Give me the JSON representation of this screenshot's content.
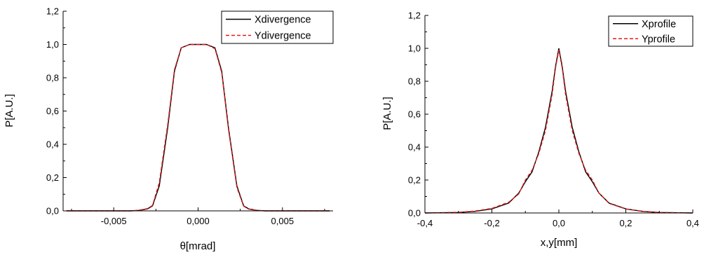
{
  "chart_data": [
    {
      "type": "line",
      "xlabel": "θ[mrad]",
      "ylabel": "P[A.U.]",
      "xlim": [
        -0.008,
        0.008
      ],
      "ylim": [
        0,
        1.2
      ],
      "xticks": [
        -0.005,
        0.0,
        0.005
      ],
      "xtick_labels": [
        "-0,005",
        "0,000",
        "0,005"
      ],
      "yticks": [
        0,
        0.2,
        0.4,
        0.6,
        0.8,
        1.0,
        1.2
      ],
      "ytick_labels": [
        "0,0",
        "0,2",
        "0,4",
        "0,6",
        "0,8",
        "1,0",
        "1,2"
      ],
      "grid": false,
      "legend": "top-right",
      "series": [
        {
          "name": "Xdivergence",
          "color": "#000000",
          "dash": "solid",
          "x": [
            -0.0078,
            -0.006,
            -0.004,
            -0.0035,
            -0.003,
            -0.0027,
            -0.0023,
            -0.0018,
            -0.0014,
            -0.001,
            -0.0005,
            -0.0001,
            0.0001,
            0.0005,
            0.001,
            0.0014,
            0.0018,
            0.0023,
            0.0027,
            0.003,
            0.0035,
            0.004,
            0.006,
            0.0078
          ],
          "y": [
            0,
            0,
            0,
            0.003,
            0.012,
            0.03,
            0.15,
            0.5,
            0.84,
            0.98,
            1.0,
            1.0,
            1.0,
            1.0,
            0.98,
            0.84,
            0.5,
            0.15,
            0.03,
            0.012,
            0.003,
            0,
            0,
            0
          ]
        },
        {
          "name": "Ydivergence",
          "color": "#e8191c",
          "dash": "dashed",
          "x": [
            -0.0078,
            -0.006,
            -0.004,
            -0.0035,
            -0.003,
            -0.0027,
            -0.0023,
            -0.0018,
            -0.0014,
            -0.001,
            -0.0005,
            -0.0001,
            0.0001,
            0.0005,
            0.001,
            0.0014,
            0.0018,
            0.0023,
            0.0027,
            0.003,
            0.0035,
            0.004,
            0.006,
            0.0078
          ],
          "y": [
            0,
            0,
            0,
            0.004,
            0.014,
            0.033,
            0.17,
            0.52,
            0.85,
            0.98,
            1.0,
            1.0,
            1.0,
            1.0,
            0.975,
            0.83,
            0.49,
            0.14,
            0.028,
            0.01,
            0.003,
            0,
            0,
            0
          ]
        }
      ]
    },
    {
      "type": "line",
      "xlabel": "x,y[mm]",
      "ylabel": "P[A.U.]",
      "xlim": [
        -0.4,
        0.4
      ],
      "ylim": [
        0,
        1.2
      ],
      "xticks": [
        -0.4,
        -0.2,
        0.0,
        0.2,
        0.4
      ],
      "xtick_labels": [
        "-0,4",
        "-0,2",
        "0,0",
        "0,2",
        "0,4"
      ],
      "yticks": [
        0,
        0.2,
        0.4,
        0.6,
        0.8,
        1.0,
        1.2
      ],
      "ytick_labels": [
        "0,0",
        "0,2",
        "0,4",
        "0,6",
        "0,8",
        "1,0",
        "1,2"
      ],
      "grid": false,
      "legend": "top-right",
      "series": [
        {
          "name": "Xprofile",
          "color": "#000000",
          "dash": "solid",
          "x": [
            -0.4,
            -0.3,
            -0.25,
            -0.2,
            -0.15,
            -0.12,
            -0.1,
            -0.08,
            -0.06,
            -0.04,
            -0.02,
            -0.01,
            0.0,
            0.01,
            0.02,
            0.04,
            0.06,
            0.08,
            0.1,
            0.12,
            0.15,
            0.2,
            0.25,
            0.3,
            0.4
          ],
          "y": [
            0,
            0.003,
            0.01,
            0.025,
            0.06,
            0.12,
            0.19,
            0.25,
            0.37,
            0.52,
            0.74,
            0.89,
            1.0,
            0.89,
            0.74,
            0.52,
            0.37,
            0.25,
            0.19,
            0.12,
            0.06,
            0.025,
            0.01,
            0.003,
            0
          ]
        },
        {
          "name": "Yprofile",
          "color": "#e8191c",
          "dash": "dashed",
          "x": [
            -0.4,
            -0.3,
            -0.25,
            -0.2,
            -0.15,
            -0.12,
            -0.1,
            -0.08,
            -0.06,
            -0.04,
            -0.02,
            -0.01,
            0.0,
            0.01,
            0.02,
            0.04,
            0.06,
            0.08,
            0.1,
            0.12,
            0.15,
            0.2,
            0.25,
            0.3,
            0.4
          ],
          "y": [
            0,
            0.004,
            0.012,
            0.028,
            0.065,
            0.115,
            0.2,
            0.26,
            0.36,
            0.5,
            0.72,
            0.88,
            0.99,
            0.88,
            0.72,
            0.5,
            0.36,
            0.26,
            0.2,
            0.12,
            0.058,
            0.024,
            0.009,
            0.003,
            0
          ]
        }
      ]
    }
  ]
}
